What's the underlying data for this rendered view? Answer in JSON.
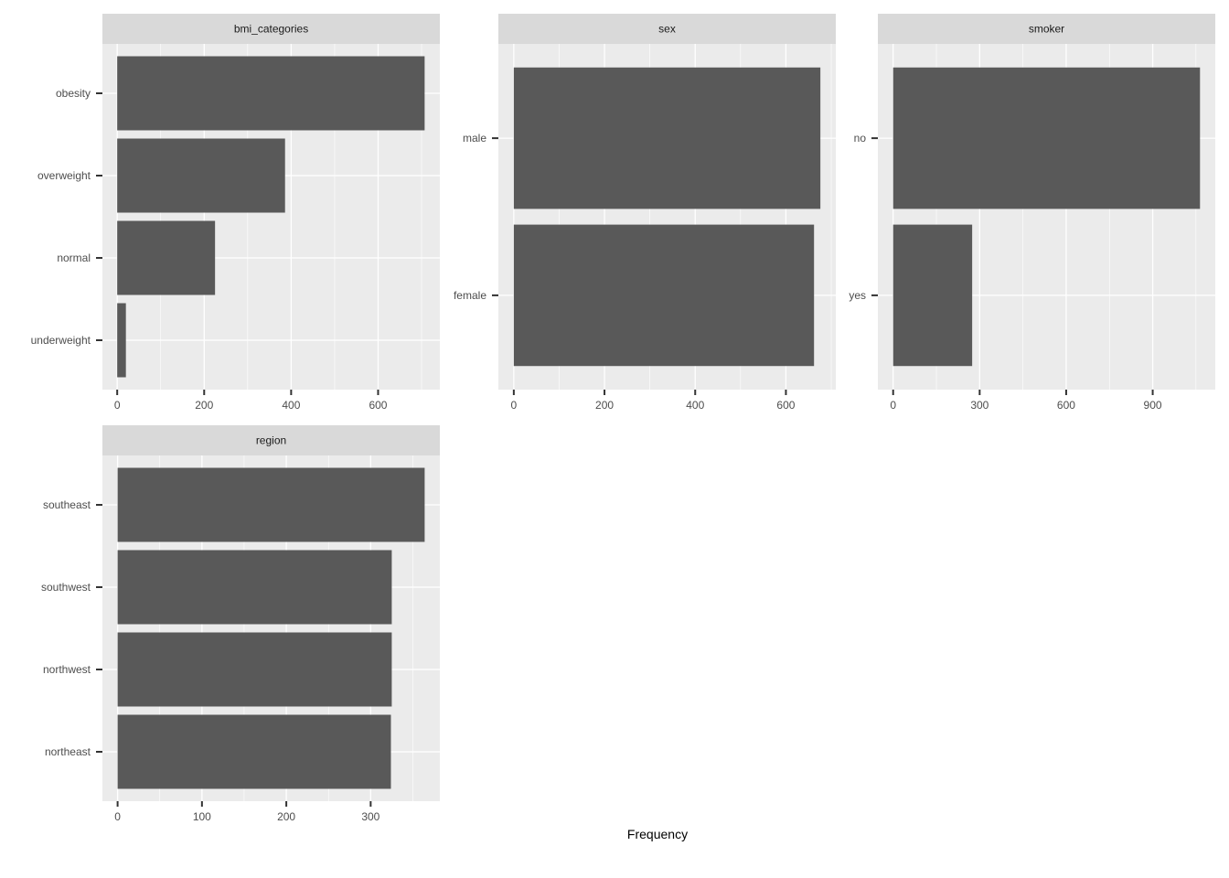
{
  "chart_data": [
    {
      "type": "bar",
      "orientation": "horizontal",
      "facet": "bmi_categories",
      "categories": [
        "obesity",
        "overweight",
        "normal",
        "underweight"
      ],
      "values": [
        707,
        386,
        225,
        20
      ],
      "xlim": [
        -34,
        742
      ],
      "xticks": [
        0,
        200,
        400,
        600
      ],
      "grid": true
    },
    {
      "type": "bar",
      "orientation": "horizontal",
      "facet": "sex",
      "categories": [
        "male",
        "female"
      ],
      "values": [
        676,
        662
      ],
      "xlim": [
        -34,
        710
      ],
      "xticks": [
        0,
        200,
        400,
        600
      ],
      "grid": true
    },
    {
      "type": "bar",
      "orientation": "horizontal",
      "facet": "smoker",
      "categories": [
        "no",
        "yes"
      ],
      "values": [
        1064,
        274
      ],
      "xlim": [
        -53,
        1117
      ],
      "xticks": [
        0,
        300,
        600,
        900
      ],
      "grid": true
    },
    {
      "type": "bar",
      "orientation": "horizontal",
      "facet": "region",
      "categories": [
        "southeast",
        "southwest",
        "northwest",
        "northeast"
      ],
      "values": [
        364,
        325,
        325,
        324
      ],
      "xlim": [
        -18,
        382
      ],
      "xticks": [
        0,
        100,
        200,
        300
      ],
      "grid": true
    }
  ],
  "xlabel": "Frequency",
  "colors": {
    "panel_background": "#ebebeb",
    "strip_background": "#d9d9d9",
    "bar_fill": "#595959",
    "grid": "#ffffff"
  }
}
